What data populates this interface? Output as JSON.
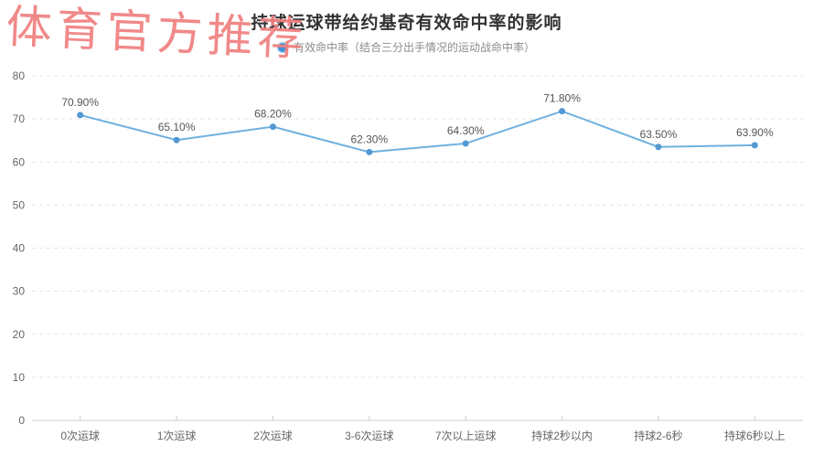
{
  "watermark": {
    "text": "体育官方推荐",
    "color": "#f08080"
  },
  "header": {
    "title": "持球运球带给约基奇有效命中率的影响"
  },
  "legend": {
    "label": "有效命中率（结合三分出手情况的运动战命中率）",
    "marker_color": "#4191d9"
  },
  "chart_data": {
    "type": "line",
    "title": "持球运球带给约基奇有效命中率的影响",
    "series_name": "有效命中率（结合三分出手情况的运动战命中率）",
    "categories": [
      "0次运球",
      "1次运球",
      "2次运球",
      "3-6次运球",
      "7次以上运球",
      "持球2秒以内",
      "持球2-6秒",
      "持球6秒以上"
    ],
    "values": [
      70.9,
      65.1,
      68.2,
      62.3,
      64.3,
      71.8,
      63.5,
      63.9
    ],
    "point_labels": [
      "70.90%",
      "65.10%",
      "68.20%",
      "62.30%",
      "64.30%",
      "71.80%",
      "63.50%",
      "63.90%"
    ],
    "xlabel": "",
    "ylabel": "",
    "ylim": [
      0,
      80
    ],
    "yticks": [
      0,
      10,
      20,
      30,
      40,
      50,
      60,
      70,
      80
    ],
    "grid": true,
    "grid_style": "dashed",
    "legend_position": "top",
    "line_color": "#6fb1e0",
    "point_color": "#5499d2",
    "label_color": "#555555",
    "axis_text_color": "#666666",
    "grid_color": "#e3e3e3",
    "axis_line_color": "#cccccc"
  }
}
